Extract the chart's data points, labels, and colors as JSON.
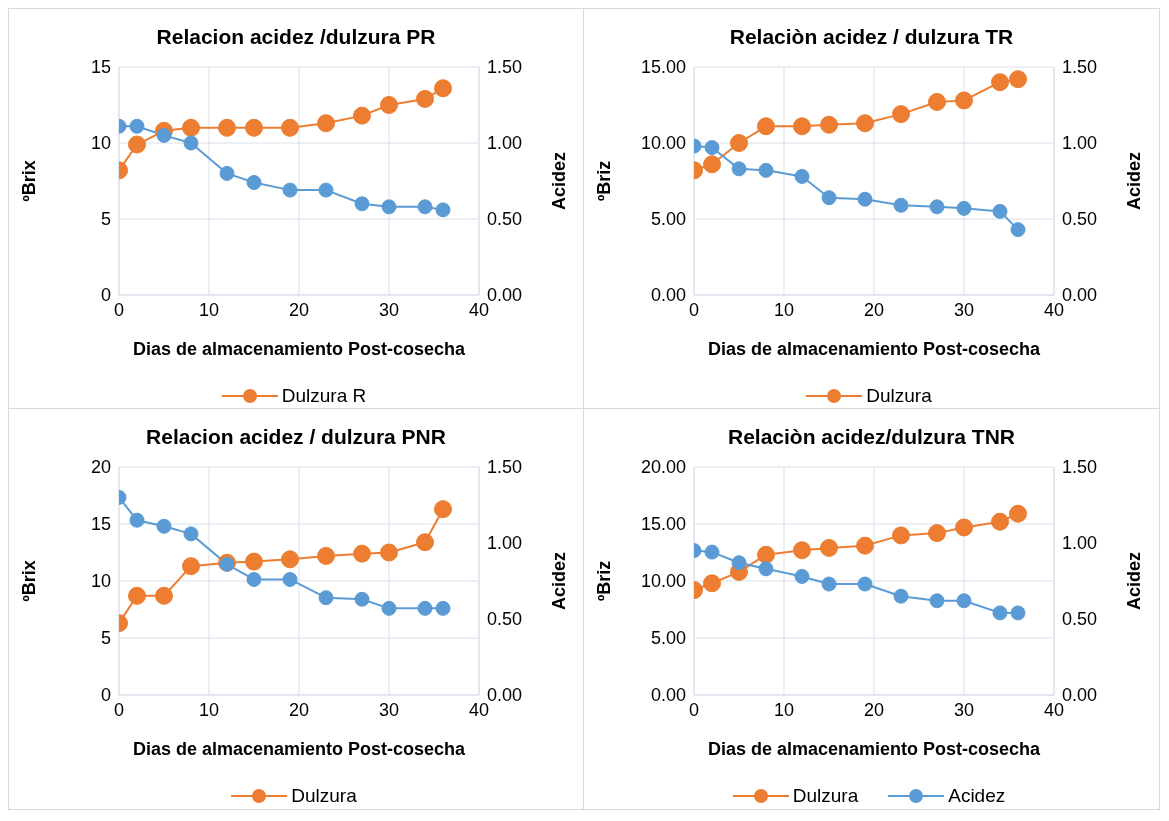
{
  "chart_data": [
    {
      "type": "line",
      "title": "Relacion acidez /dulzura PR",
      "xlabel": "Dias de almacenamiento Post-cosecha",
      "ylabel": "ºBrix",
      "y2label": "Acidez",
      "x": [
        0,
        2,
        5,
        8,
        12,
        15,
        19,
        23,
        27,
        30,
        34,
        36
      ],
      "xlim": [
        0,
        40
      ],
      "xticks": [
        0,
        10,
        20,
        30,
        40
      ],
      "ylim": [
        0,
        15
      ],
      "yticks": [
        0,
        5,
        10,
        15
      ],
      "y2lim": [
        0,
        1.5
      ],
      "y2ticks": [
        {
          "value": 0,
          "label": "0.00"
        },
        {
          "value": 0.5,
          "label": "0.50"
        },
        {
          "value": 1,
          "label": "1.00"
        },
        {
          "value": 1.5,
          "label": "1.50"
        }
      ],
      "grid": true,
      "legend": "bottom",
      "marker": "circle",
      "line_style": "solid",
      "series": [
        {
          "name": "Dulzura R",
          "color": "#ed7d31",
          "values": [
            8.2,
            9.9,
            10.8,
            11,
            11,
            11,
            11,
            11.3,
            11.8,
            12.5,
            12.9,
            13.6
          ]
        },
        {
          "color": "#5b9bd5",
          "axis": "y2",
          "values": [
            1.11,
            1.11,
            1.05,
            1.0,
            0.8,
            0.74,
            0.69,
            0.69,
            0.6,
            0.58,
            0.58,
            0.56
          ]
        }
      ]
    },
    {
      "type": "line",
      "title": "Relaciòn acidez / dulzura TR",
      "xlabel": "Dias de almacenamiento Post-cosecha",
      "ylabel": "ºBriz",
      "y2label": "Acidez",
      "x": [
        0,
        2,
        5,
        8,
        12,
        15,
        19,
        23,
        27,
        30,
        34,
        36
      ],
      "xlim": [
        0,
        40
      ],
      "xticks": [
        0,
        10,
        20,
        30,
        40
      ],
      "ylim": [
        0,
        15
      ],
      "yticks": [
        {
          "value": 0,
          "label": "0.00"
        },
        {
          "value": 5,
          "label": "5.00"
        },
        {
          "value": 10,
          "label": "10.00"
        },
        {
          "value": 15,
          "label": "15.00"
        }
      ],
      "y2lim": [
        0,
        1.5
      ],
      "y2ticks": [
        {
          "value": 0,
          "label": "0.00"
        },
        {
          "value": 0.5,
          "label": "0.50"
        },
        {
          "value": 1,
          "label": "1.00"
        },
        {
          "value": 1.5,
          "label": "1.50"
        }
      ],
      "grid": true,
      "legend": "bottom",
      "marker": "circle",
      "line_style": "solid",
      "series": [
        {
          "name": "Dulzura",
          "color": "#ed7d31",
          "values": [
            8.2,
            8.6,
            10.0,
            11.1,
            11.1,
            11.2,
            11.3,
            11.9,
            12.7,
            12.8,
            14.0,
            14.2
          ]
        },
        {
          "color": "#5b9bd5",
          "axis": "y2",
          "values": [
            0.98,
            0.97,
            0.83,
            0.82,
            0.78,
            0.64,
            0.63,
            0.59,
            0.58,
            0.57,
            0.55,
            0.43
          ]
        }
      ]
    },
    {
      "type": "line",
      "title": "Relacion acidez / dulzura PNR",
      "xlabel": "Dias de almacenamiento Post-cosecha",
      "ylabel": "ºBrix",
      "y2label": "Acidez",
      "x": [
        0,
        2,
        5,
        8,
        12,
        15,
        19,
        23,
        27,
        30,
        34,
        36
      ],
      "xlim": [
        0,
        40
      ],
      "xticks": [
        0,
        10,
        20,
        30,
        40
      ],
      "ylim": [
        0,
        20
      ],
      "yticks": [
        0,
        5,
        10,
        15,
        20
      ],
      "y2lim": [
        0,
        1.5
      ],
      "y2ticks": [
        {
          "value": 0,
          "label": "0.00"
        },
        {
          "value": 0.5,
          "label": "0.50"
        },
        {
          "value": 1,
          "label": "1.00"
        },
        {
          "value": 1.5,
          "label": "1.50"
        }
      ],
      "grid": true,
      "legend": "bottom",
      "marker": "circle",
      "line_style": "solid",
      "series": [
        {
          "name": "Dulzura",
          "color": "#ed7d31",
          "values": [
            6.3,
            8.7,
            8.7,
            11.3,
            11.6,
            11.7,
            11.9,
            12.2,
            12.4,
            12.5,
            13.4,
            16.3
          ]
        },
        {
          "color": "#5b9bd5",
          "axis": "y2",
          "values": [
            1.3,
            1.15,
            1.11,
            1.06,
            0.86,
            0.76,
            0.76,
            0.64,
            0.63,
            0.57,
            0.57,
            0.57
          ]
        }
      ]
    },
    {
      "type": "line",
      "title": "Relaciòn acidez/dulzura TNR",
      "xlabel": "Dias de almacenamiento Post-cosecha",
      "ylabel": "ºBriz",
      "y2label": "Acidez",
      "x": [
        0,
        2,
        5,
        8,
        12,
        15,
        19,
        23,
        27,
        30,
        34,
        36
      ],
      "xlim": [
        0,
        40
      ],
      "xticks": [
        0,
        10,
        20,
        30,
        40
      ],
      "ylim": [
        0,
        20
      ],
      "yticks": [
        {
          "value": 0,
          "label": "0.00"
        },
        {
          "value": 5,
          "label": "5.00"
        },
        {
          "value": 10,
          "label": "10.00"
        },
        {
          "value": 15,
          "label": "15.00"
        },
        {
          "value": 20,
          "label": "20.00"
        }
      ],
      "y2lim": [
        0,
        1.5
      ],
      "y2ticks": [
        {
          "value": 0,
          "label": "0.00"
        },
        {
          "value": 0.5,
          "label": "0.50"
        },
        {
          "value": 1,
          "label": "1.00"
        },
        {
          "value": 1.5,
          "label": "1.50"
        }
      ],
      "grid": true,
      "legend": "bottom",
      "marker": "circle",
      "line_style": "solid",
      "series": [
        {
          "name": "Dulzura",
          "color": "#ed7d31",
          "values": [
            9.2,
            9.8,
            10.8,
            12.3,
            12.7,
            12.9,
            13.1,
            14.0,
            14.2,
            14.7,
            15.2,
            15.9
          ]
        },
        {
          "name": "Acidez",
          "color": "#5b9bd5",
          "axis": "y2",
          "values": [
            0.95,
            0.94,
            0.87,
            0.83,
            0.78,
            0.73,
            0.73,
            0.65,
            0.62,
            0.62,
            0.54,
            0.54
          ]
        }
      ]
    }
  ]
}
